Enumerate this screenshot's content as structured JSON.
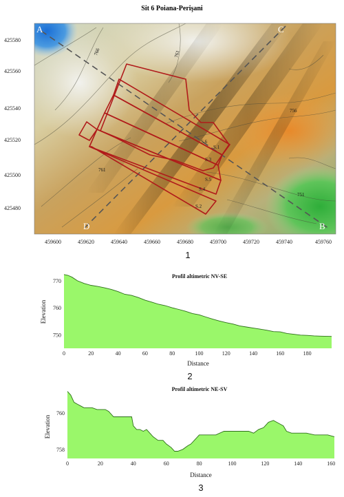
{
  "chart_data": [
    {
      "type": "map",
      "title": "Sit 6 Poiana-Perişani",
      "figure_number": "1",
      "x_ticks": [
        "459600",
        "459620",
        "459640",
        "459660",
        "459680",
        "459700",
        "459720",
        "459740",
        "459760"
      ],
      "y_ticks": [
        "425580",
        "425560",
        "425540",
        "425520",
        "425500",
        "425480"
      ],
      "profile_points": [
        "A",
        "C",
        "D",
        "B"
      ],
      "contour_labels": [
        "766",
        "761",
        "756",
        "761",
        "751"
      ],
      "sections": [
        "S.1",
        "S.3",
        "S.5",
        "S.4",
        "S.2",
        "S.6"
      ],
      "colors": {
        "section_outline": "#b01a1a",
        "profile_line": "#555555"
      }
    },
    {
      "type": "area",
      "title": "Profil altimetric NV-SE",
      "figure_number": "2",
      "xlabel": "Distance",
      "ylabel": "Elevation",
      "xlim": [
        0,
        198
      ],
      "ylim": [
        745,
        772
      ],
      "x_ticks": [
        0,
        20,
        40,
        60,
        80,
        100,
        120,
        140,
        160,
        180
      ],
      "y_ticks": [
        750,
        760,
        770
      ],
      "x": [
        0,
        3,
        6,
        10,
        15,
        20,
        25,
        30,
        35,
        40,
        45,
        50,
        55,
        60,
        65,
        70,
        75,
        80,
        85,
        90,
        95,
        100,
        105,
        110,
        115,
        120,
        125,
        130,
        135,
        140,
        145,
        150,
        155,
        160,
        165,
        170,
        175,
        180,
        185,
        190,
        198
      ],
      "y": [
        772.3,
        772.0,
        771.3,
        770.0,
        769.0,
        768.3,
        767.9,
        767.4,
        766.8,
        766.0,
        765.0,
        764.6,
        763.8,
        762.8,
        762.1,
        761.3,
        760.8,
        760.0,
        759.4,
        758.7,
        757.9,
        757.4,
        756.6,
        755.8,
        755.1,
        754.5,
        754.0,
        753.3,
        752.9,
        752.5,
        752.1,
        751.7,
        751.2,
        751.1,
        750.5,
        750.2,
        749.9,
        749.8,
        749.6,
        749.5,
        749.4
      ],
      "fill_color": "#9af76a",
      "line_color": "#2d6e1a"
    },
    {
      "type": "area",
      "title": "Profil altimetric NE-SV",
      "figure_number": "3",
      "xlabel": "Distance",
      "ylabel": "Elevation",
      "xlim": [
        0,
        162
      ],
      "ylim": [
        757.5,
        761.3
      ],
      "x_ticks": [
        0,
        20,
        40,
        60,
        80,
        100,
        120,
        140,
        160
      ],
      "y_ticks": [
        758,
        760
      ],
      "x": [
        0,
        2,
        4,
        6,
        8,
        10,
        12,
        15,
        18,
        20,
        23,
        25,
        28,
        30,
        33,
        36,
        39,
        40,
        42,
        44,
        46,
        48,
        50,
        52,
        55,
        58,
        60,
        63,
        65,
        67,
        70,
        73,
        75,
        78,
        80,
        83,
        86,
        90,
        95,
        100,
        105,
        110,
        113,
        116,
        119,
        122,
        125,
        127,
        129,
        131,
        133,
        136,
        140,
        145,
        150,
        155,
        158,
        162
      ],
      "y": [
        761.2,
        761.0,
        760.6,
        760.5,
        760.4,
        760.3,
        760.3,
        760.3,
        760.2,
        760.2,
        760.2,
        760.1,
        759.8,
        759.8,
        759.8,
        759.8,
        759.8,
        759.3,
        759.1,
        759.1,
        759.0,
        759.1,
        758.9,
        758.7,
        758.5,
        758.5,
        758.3,
        758.1,
        757.9,
        757.9,
        758.0,
        758.2,
        758.3,
        758.6,
        758.8,
        758.8,
        758.8,
        758.8,
        759.0,
        759.0,
        759.0,
        759.0,
        758.9,
        759.1,
        759.2,
        759.5,
        759.6,
        759.5,
        759.4,
        759.3,
        759.0,
        758.9,
        758.9,
        758.9,
        758.8,
        758.8,
        758.8,
        758.7
      ],
      "fill_color": "#9af76a",
      "line_color": "#2d6e1a"
    }
  ]
}
